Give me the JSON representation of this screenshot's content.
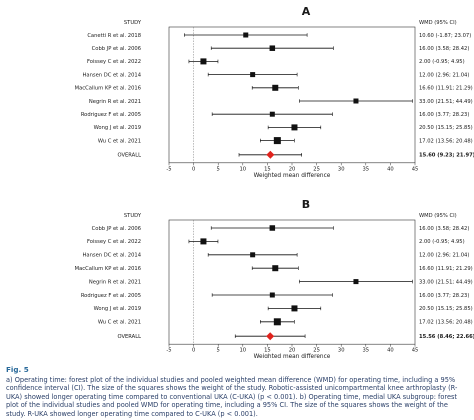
{
  "figure_label": "Fig. 5",
  "caption": {
    "a": "a) Operating time: forest plot of the individual studies and pooled weighted mean difference (WMD) for operating time, including a 95% confidence interval (CI). The size of the squares shows the weight of the study. Robotic-assisted unicompartmental knee arthroplasty (R-UKA) showed longer operating time compared to conventional UKA (C-UKA) (p < 0.001).",
    "b": "b) Operating time, medial UKA subgroup: forest plot of the individual studies and pooled WMD for operating time, including a 95% CI. The size of the squares shows the weight of the study. R-UKA showed longer operating time compared to C-UKA (p < 0.001)."
  },
  "chart_data": [
    {
      "type": "forest",
      "panel_label": "A",
      "study_header": "STUDY",
      "wmd_header": "WMD (95% CI)",
      "xlabel": "Weighted mean difference",
      "xlim": [
        -5,
        45
      ],
      "xticks": [
        -5,
        0,
        5,
        10,
        15,
        20,
        25,
        30,
        35,
        40,
        45
      ],
      "reference_line": 0,
      "studies": [
        {
          "name": "Canetti R et al. 2018",
          "wmd": 10.6,
          "lo": -1.87,
          "hi": 23.07,
          "label": "10.60 (-1.87; 23.07)"
        },
        {
          "name": "Cobb JP et al. 2006",
          "wmd": 16.0,
          "lo": 3.58,
          "hi": 28.42,
          "label": "16.00 (3.58; 28.42)"
        },
        {
          "name": "Foissey C et al. 2022",
          "wmd": 2.0,
          "lo": -0.95,
          "hi": 4.95,
          "label": "2.00 (-0.95; 4.95)"
        },
        {
          "name": "Hansen DC et al. 2014",
          "wmd": 12.0,
          "lo": 2.96,
          "hi": 21.04,
          "label": "12.00 (2.96; 21.04)"
        },
        {
          "name": "MacCallum KP et al. 2016",
          "wmd": 16.6,
          "lo": 11.91,
          "hi": 21.29,
          "label": "16.60 (11.91; 21.29)"
        },
        {
          "name": "Negrin R et al. 2021",
          "wmd": 33.0,
          "lo": 21.51,
          "hi": 44.49,
          "label": "33.00 (21.51; 44.49)"
        },
        {
          "name": "Rodriguez F et al. 2005",
          "wmd": 16.0,
          "lo": 3.77,
          "hi": 28.23,
          "label": "16.00 (3.77; 28.23)"
        },
        {
          "name": "Wong J et al. 2019",
          "wmd": 20.5,
          "lo": 15.15,
          "hi": 25.85,
          "label": "20.50 (15.15; 25.85)"
        },
        {
          "name": "Wu C et al. 2021",
          "wmd": 17.02,
          "lo": 13.56,
          "hi": 20.48,
          "label": "17.02 (13.56; 20.48)"
        }
      ],
      "overall": {
        "name": "OVERALL",
        "wmd": 15.6,
        "lo": 9.23,
        "hi": 21.97,
        "label": "15.60 (9.23; 21.97)"
      }
    },
    {
      "type": "forest",
      "panel_label": "B",
      "study_header": "STUDY",
      "wmd_header": "WMD (95% CI)",
      "xlabel": "Weighted mean difference",
      "xlim": [
        -5,
        45
      ],
      "xticks": [
        -5,
        0,
        5,
        10,
        15,
        20,
        25,
        30,
        35,
        40,
        45
      ],
      "reference_line": 0,
      "studies": [
        {
          "name": "Cobb JP et al. 2006",
          "wmd": 16.0,
          "lo": 3.58,
          "hi": 28.42,
          "label": "16.00 (3.58; 28.42)"
        },
        {
          "name": "Foissey C et al. 2022",
          "wmd": 2.0,
          "lo": -0.95,
          "hi": 4.95,
          "label": "2.00 (-0.95; 4.95)"
        },
        {
          "name": "Hansen DC et al. 2014",
          "wmd": 12.0,
          "lo": 2.96,
          "hi": 21.04,
          "label": "12.00 (2.96; 21.04)"
        },
        {
          "name": "MacCallum KP et al. 2016",
          "wmd": 16.6,
          "lo": 11.91,
          "hi": 21.29,
          "label": "16.60 (11.91; 21.29)"
        },
        {
          "name": "Negrin R et al. 2021",
          "wmd": 33.0,
          "lo": 21.51,
          "hi": 44.49,
          "label": "33.00 (21.51; 44.49)"
        },
        {
          "name": "Rodriguez F et al. 2005",
          "wmd": 16.0,
          "lo": 3.77,
          "hi": 28.23,
          "label": "16.00 (3.77; 28.23)"
        },
        {
          "name": "Wong J et al. 2019",
          "wmd": 20.5,
          "lo": 15.15,
          "hi": 25.85,
          "label": "20.50 (15.15; 25.85)"
        },
        {
          "name": "Wu C et al. 2021",
          "wmd": 17.02,
          "lo": 13.56,
          "hi": 20.48,
          "label": "17.02 (13.56; 20.48)"
        }
      ],
      "overall": {
        "name": "OVERALL",
        "wmd": 15.56,
        "lo": 8.46,
        "hi": 22.66,
        "label": "15.56 (8.46; 22.66)"
      }
    }
  ]
}
